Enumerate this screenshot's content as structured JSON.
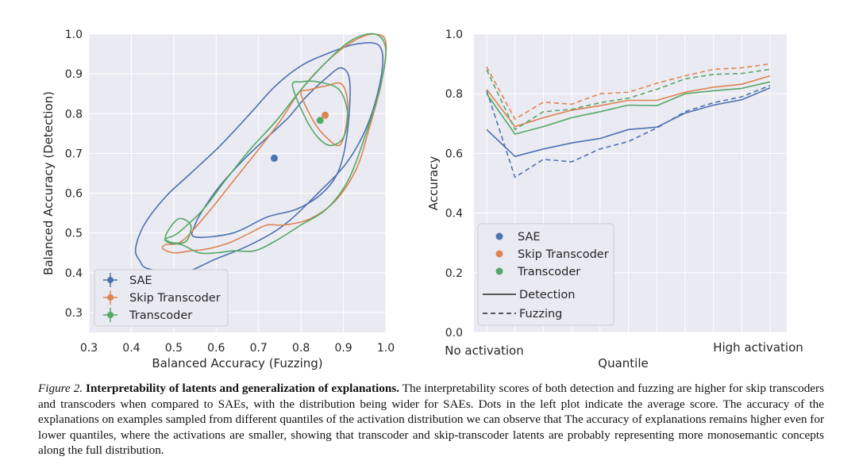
{
  "colors": {
    "sae": "#4c72b0",
    "skip": "#dd8452",
    "transcoder": "#55a868",
    "panel_bg": "#eaeaf2"
  },
  "chart_data": [
    {
      "type": "scatter",
      "description": "KDE density contours with mean-score dots",
      "xlabel": "Balanced Accuracy (Fuzzing)",
      "ylabel": "Balanced Accuracy (Detection)",
      "xlim": [
        0.3,
        1.0
      ],
      "ylim": [
        0.25,
        1.0
      ],
      "xticks": [
        "0.3",
        "0.4",
        "0.5",
        "0.6",
        "0.7",
        "0.8",
        "0.9",
        "1.0"
      ],
      "yticks": [
        "0.3",
        "0.4",
        "0.5",
        "0.6",
        "0.7",
        "0.8",
        "0.9",
        "1.0"
      ],
      "legend_position": "lower-left",
      "legend": [
        "SAE",
        "Skip Transcoder",
        "Transcoder"
      ],
      "series": [
        {
          "name": "SAE",
          "mean": [
            0.737,
            0.688
          ],
          "contours": [
            [
              [
                0.42,
                0.43
              ],
              [
                0.44,
                0.41
              ],
              [
                0.52,
                0.4
              ],
              [
                0.6,
                0.435
              ],
              [
                0.68,
                0.47
              ],
              [
                0.76,
                0.52
              ],
              [
                0.84,
                0.6
              ],
              [
                0.91,
                0.68
              ],
              [
                0.96,
                0.78
              ],
              [
                0.99,
                0.9
              ],
              [
                0.985,
                0.97
              ],
              [
                0.93,
                0.975
              ],
              [
                0.86,
                0.95
              ],
              [
                0.8,
                0.92
              ],
              [
                0.74,
                0.87
              ],
              [
                0.68,
                0.8
              ],
              [
                0.61,
                0.72
              ],
              [
                0.54,
                0.65
              ],
              [
                0.48,
                0.59
              ],
              [
                0.43,
                0.52
              ],
              [
                0.41,
                0.46
              ]
            ],
            [
              [
                0.55,
                0.49
              ],
              [
                0.64,
                0.5
              ],
              [
                0.72,
                0.54
              ],
              [
                0.79,
                0.56
              ],
              [
                0.85,
                0.6
              ],
              [
                0.89,
                0.66
              ],
              [
                0.91,
                0.76
              ],
              [
                0.915,
                0.88
              ],
              [
                0.895,
                0.915
              ],
              [
                0.86,
                0.89
              ],
              [
                0.81,
                0.84
              ],
              [
                0.77,
                0.79
              ],
              [
                0.72,
                0.74
              ],
              [
                0.67,
                0.69
              ],
              [
                0.61,
                0.62
              ],
              [
                0.57,
                0.56
              ],
              [
                0.55,
                0.52
              ]
            ]
          ]
        },
        {
          "name": "Skip Transcoder",
          "mean": [
            0.857,
            0.796
          ],
          "contours": [
            [
              [
                0.48,
                0.47
              ],
              [
                0.52,
                0.48
              ],
              [
                0.58,
                0.55
              ],
              [
                0.64,
                0.63
              ],
              [
                0.7,
                0.71
              ],
              [
                0.75,
                0.78
              ],
              [
                0.8,
                0.86
              ],
              [
                0.86,
                0.93
              ],
              [
                0.92,
                0.98
              ],
              [
                0.97,
                1.0
              ],
              [
                1.0,
                0.98
              ],
              [
                0.99,
                0.88
              ],
              [
                0.96,
                0.76
              ],
              [
                0.93,
                0.66
              ],
              [
                0.88,
                0.58
              ],
              [
                0.82,
                0.535
              ],
              [
                0.76,
                0.52
              ],
              [
                0.72,
                0.52
              ],
              [
                0.68,
                0.5
              ],
              [
                0.63,
                0.475
              ],
              [
                0.58,
                0.46
              ],
              [
                0.54,
                0.455
              ],
              [
                0.5,
                0.45
              ],
              [
                0.475,
                0.46
              ]
            ],
            [
              [
                0.8,
                0.85
              ],
              [
                0.83,
                0.78
              ],
              [
                0.86,
                0.74
              ],
              [
                0.89,
                0.72
              ],
              [
                0.905,
                0.76
              ],
              [
                0.91,
                0.83
              ],
              [
                0.895,
                0.875
              ],
              [
                0.86,
                0.87
              ],
              [
                0.82,
                0.86
              ]
            ]
          ]
        },
        {
          "name": "Transcoder",
          "mean": [
            0.845,
            0.783
          ],
          "contours": [
            [
              [
                0.48,
                0.485
              ],
              [
                0.51,
                0.5
              ],
              [
                0.57,
                0.56
              ],
              [
                0.62,
                0.63
              ],
              [
                0.68,
                0.71
              ],
              [
                0.74,
                0.78
              ],
              [
                0.8,
                0.86
              ],
              [
                0.86,
                0.93
              ],
              [
                0.92,
                0.985
              ],
              [
                0.975,
                1.0
              ],
              [
                1.0,
                0.96
              ],
              [
                0.985,
                0.86
              ],
              [
                0.95,
                0.74
              ],
              [
                0.91,
                0.63
              ],
              [
                0.86,
                0.56
              ],
              [
                0.8,
                0.52
              ],
              [
                0.74,
                0.48
              ],
              [
                0.69,
                0.455
              ],
              [
                0.64,
                0.455
              ],
              [
                0.6,
                0.45
              ],
              [
                0.56,
                0.45
              ],
              [
                0.52,
                0.47
              ],
              [
                0.49,
                0.475
              ]
            ],
            [
              [
                0.48,
                0.49
              ],
              [
                0.51,
                0.535
              ],
              [
                0.54,
                0.52
              ],
              [
                0.53,
                0.48
              ],
              [
                0.5,
                0.475
              ]
            ],
            [
              [
                0.78,
                0.87
              ],
              [
                0.81,
                0.79
              ],
              [
                0.84,
                0.74
              ],
              [
                0.87,
                0.72
              ],
              [
                0.9,
                0.74
              ],
              [
                0.91,
                0.8
              ],
              [
                0.89,
                0.86
              ],
              [
                0.84,
                0.88
              ],
              [
                0.8,
                0.88
              ]
            ]
          ]
        }
      ]
    },
    {
      "type": "line",
      "xlabel": "Quantile",
      "ylabel": "Accuracy",
      "ylim": [
        0.0,
        1.0
      ],
      "yticks": [
        "0.0",
        "0.2",
        "0.4",
        "0.6",
        "0.8",
        "1.0"
      ],
      "x": [
        0,
        1,
        2,
        3,
        4,
        5,
        6,
        7,
        8,
        9,
        10
      ],
      "x_labels": {
        "left": "No activation",
        "right": "High activation"
      },
      "legend_position": "lower-left",
      "legend": [
        "SAE",
        "Skip Transcoder",
        "Transcoder",
        "Detection",
        "Fuzzing"
      ],
      "series": [
        {
          "name": "SAE",
          "metric": "Detection",
          "values": [
            0.68,
            0.59,
            0.615,
            0.635,
            0.65,
            0.68,
            0.688,
            0.735,
            0.762,
            0.78,
            0.82
          ]
        },
        {
          "name": "SAE",
          "metric": "Fuzzing",
          "values": [
            0.81,
            0.52,
            0.58,
            0.572,
            0.615,
            0.64,
            0.685,
            0.74,
            0.77,
            0.79,
            0.828
          ]
        },
        {
          "name": "Skip Transcoder",
          "metric": "Detection",
          "values": [
            0.815,
            0.69,
            0.72,
            0.745,
            0.76,
            0.778,
            0.778,
            0.805,
            0.822,
            0.832,
            0.86
          ]
        },
        {
          "name": "Skip Transcoder",
          "metric": "Fuzzing",
          "values": [
            0.89,
            0.715,
            0.772,
            0.765,
            0.8,
            0.805,
            0.835,
            0.86,
            0.882,
            0.887,
            0.9
          ]
        },
        {
          "name": "Transcoder",
          "metric": "Detection",
          "values": [
            0.8,
            0.665,
            0.69,
            0.72,
            0.74,
            0.762,
            0.76,
            0.8,
            0.81,
            0.818,
            0.84
          ]
        },
        {
          "name": "Transcoder",
          "metric": "Fuzzing",
          "values": [
            0.88,
            0.68,
            0.74,
            0.748,
            0.77,
            0.785,
            0.815,
            0.85,
            0.865,
            0.868,
            0.882
          ]
        }
      ]
    }
  ],
  "caption": {
    "figure_label": "Figure 2.",
    "title": "Interpretability of latents and generalization of explanations.",
    "body": "The interpretability scores of both detection and fuzzing are higher for skip transcoders and transcoders when compared to SAEs, with the distribution being wider for SAEs. Dots in the left plot indicate the average score. The accuracy of the explanations on examples sampled from different quantiles of the activation distribution we can observe that The accuracy of explanations remains higher even for lower quantiles, where the activations are smaller, showing that transcoder and skip-transcoder latents are probably representing more monosemantic concepts along the full distribution."
  }
}
